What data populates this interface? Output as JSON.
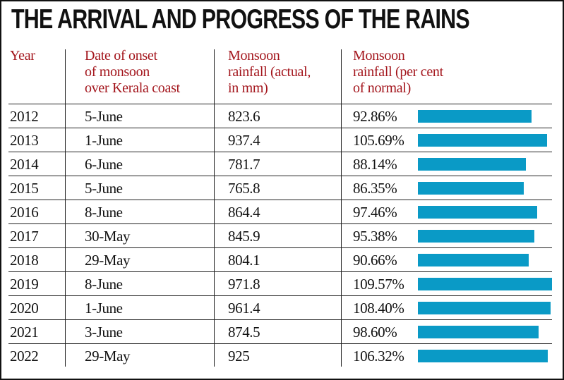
{
  "title": "THE ARRIVAL AND PROGRESS OF THE RAINS",
  "chart_data": {
    "type": "table",
    "title": "THE ARRIVAL AND PROGRESS OF THE RAINS",
    "columns": [
      "Year",
      "Date of onset of monsoon over Kerala coast",
      "Monsoon rainfall (actual, in mm)",
      "Monsoon rainfall (per cent of normal)"
    ],
    "bar_color": "#0a9ac6",
    "header_color": "#a3151c",
    "rows": [
      {
        "year": "2012",
        "onset": "5-June",
        "rainfall": "823.6",
        "percent": "92.86%",
        "pct": 92.86
      },
      {
        "year": "2013",
        "onset": "1-June",
        "rainfall": "937.4",
        "percent": "105.69%",
        "pct": 105.69
      },
      {
        "year": "2014",
        "onset": "6-June",
        "rainfall": "781.7",
        "percent": "88.14%",
        "pct": 88.14
      },
      {
        "year": "2015",
        "onset": "5-June",
        "rainfall": "765.8",
        "percent": "86.35%",
        "pct": 86.35
      },
      {
        "year": "2016",
        "onset": "8-June",
        "rainfall": "864.4",
        "percent": "97.46%",
        "pct": 97.46
      },
      {
        "year": "2017",
        "onset": "30-May",
        "rainfall": "845.9",
        "percent": "95.38%",
        "pct": 95.38
      },
      {
        "year": "2018",
        "onset": "29-May",
        "rainfall": "804.1",
        "percent": "90.66%",
        "pct": 90.66
      },
      {
        "year": "2019",
        "onset": "8-June",
        "rainfall": "971.8",
        "percent": "109.57%",
        "pct": 109.57
      },
      {
        "year": "2020",
        "onset": "1-June",
        "rainfall": "961.4",
        "percent": "108.40%",
        "pct": 108.4
      },
      {
        "year": "2021",
        "onset": "3-June",
        "rainfall": "874.5",
        "percent": "98.60%",
        "pct": 98.6
      },
      {
        "year": "2022",
        "onset": "29-May",
        "rainfall": "925",
        "percent": "106.32%",
        "pct": 106.32
      }
    ]
  },
  "headers": {
    "year": "Year",
    "onset_lines": [
      "Date of onset",
      "of monsoon",
      "over Kerala coast"
    ],
    "rainfall_lines": [
      "Monsoon",
      "rainfall (actual,",
      "in mm)"
    ],
    "percent_lines": [
      "Monsoon",
      "rainfall (per cent",
      "of normal)"
    ]
  }
}
